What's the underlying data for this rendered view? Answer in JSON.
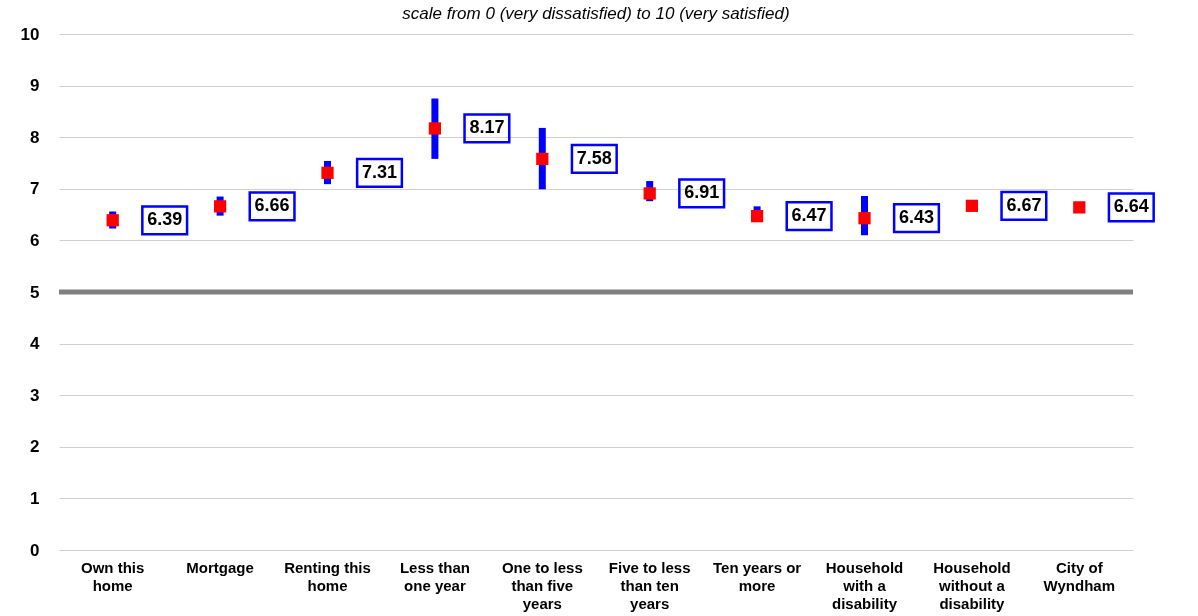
{
  "chart_data": {
    "type": "scatter",
    "subtitle": "scale from 0 (very dissatisfied) to 10 (very satisfied)",
    "categories": [
      "Own this home",
      "Mortgage",
      "Renting this home",
      "Less than one year",
      "One to less than five years",
      "Five to less than ten years",
      "Ten years or more",
      "Household with a disability",
      "Household without a disability",
      "City of Wyndham"
    ],
    "values": [
      6.39,
      6.66,
      7.31,
      8.17,
      7.58,
      6.91,
      6.47,
      6.43,
      6.67,
      6.64
    ],
    "errors": [
      [
        6.23,
        6.56
      ],
      [
        6.48,
        6.85
      ],
      [
        7.09,
        7.54
      ],
      [
        7.58,
        8.75
      ],
      [
        6.99,
        8.18
      ],
      [
        6.76,
        7.15
      ],
      [
        6.39,
        6.66
      ],
      [
        6.1,
        6.86
      ],
      null,
      null
    ],
    "color": "#ff0000",
    "marker": "square",
    "data_labels": true,
    "ylim": [
      0,
      10
    ],
    "yticks": [
      0,
      1,
      2,
      3,
      4,
      5,
      6,
      7,
      8,
      9,
      10
    ],
    "grid": "y",
    "ref_lines": [
      {
        "axis": "y",
        "value": 5,
        "color": "#808080"
      }
    ]
  }
}
